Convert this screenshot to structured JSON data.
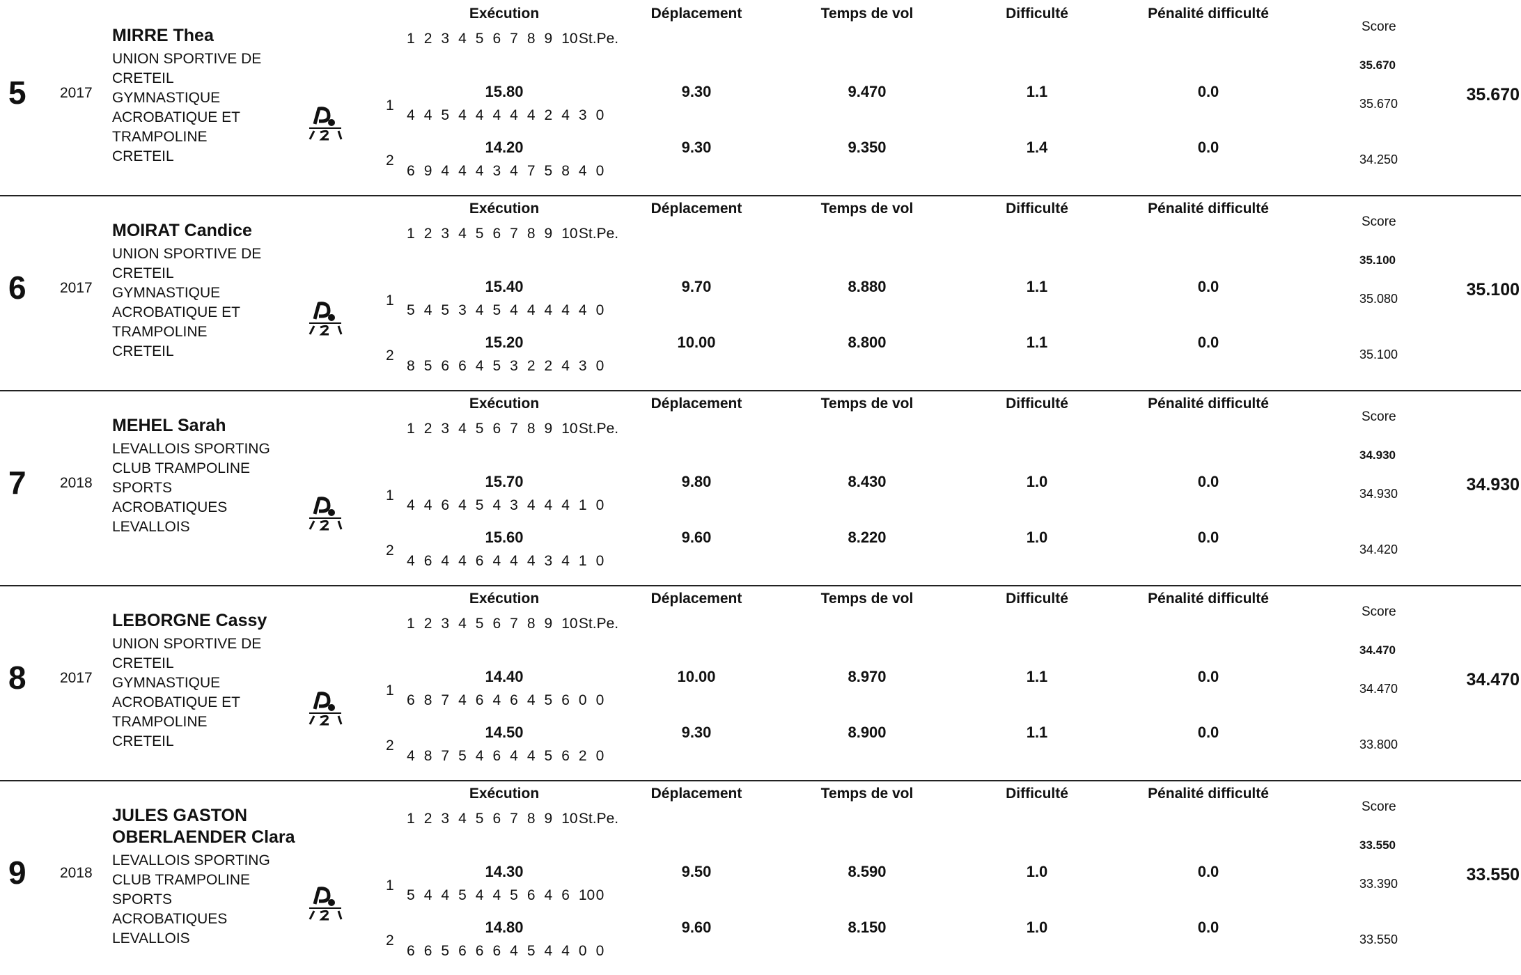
{
  "headers": {
    "execution": "Exécution",
    "displacement": "Déplacement",
    "flight_time": "Temps de vol",
    "difficulty": "Difficulté",
    "difficulty_penalty": "Pénalité difficulté",
    "score": "Score"
  },
  "judge_columns": [
    "1",
    "2",
    "3",
    "4",
    "5",
    "6",
    "7",
    "8",
    "9",
    "10",
    "St.",
    "Pe."
  ],
  "colors": {
    "text": "#111111",
    "rule": "#222222",
    "background": "#ffffff"
  },
  "logo_icon": "trampoline-figure-icon",
  "entries": [
    {
      "rank": "5",
      "year": "2017",
      "names": [
        "MIRRE Thea"
      ],
      "club": [
        "UNION SPORTIVE DE",
        "CRETEIL",
        "GYMNASTIQUE",
        "ACROBATIQUE ET",
        "TRAMPOLINE",
        "CRETEIL"
      ],
      "best_score": "35.670",
      "final_score": "35.670",
      "runs": [
        {
          "number": "1",
          "execution": "15.80",
          "marks": [
            "4",
            "4",
            "5",
            "4",
            "4",
            "4",
            "4",
            "4",
            "2",
            "4",
            "3",
            "0"
          ],
          "displacement": "9.30",
          "flight_time": "9.470",
          "difficulty": "1.1",
          "penalty": "0.0",
          "score": "35.670"
        },
        {
          "number": "2",
          "execution": "14.20",
          "marks": [
            "6",
            "9",
            "4",
            "4",
            "4",
            "3",
            "4",
            "7",
            "5",
            "8",
            "4",
            "0"
          ],
          "displacement": "9.30",
          "flight_time": "9.350",
          "difficulty": "1.4",
          "penalty": "0.0",
          "score": "34.250"
        }
      ]
    },
    {
      "rank": "6",
      "year": "2017",
      "names": [
        "MOIRAT Candice"
      ],
      "club": [
        "UNION SPORTIVE DE",
        "CRETEIL",
        "GYMNASTIQUE",
        "ACROBATIQUE ET",
        "TRAMPOLINE",
        "CRETEIL"
      ],
      "best_score": "35.100",
      "final_score": "35.100",
      "runs": [
        {
          "number": "1",
          "execution": "15.40",
          "marks": [
            "5",
            "4",
            "5",
            "3",
            "4",
            "5",
            "4",
            "4",
            "4",
            "4",
            "4",
            "0"
          ],
          "displacement": "9.70",
          "flight_time": "8.880",
          "difficulty": "1.1",
          "penalty": "0.0",
          "score": "35.080"
        },
        {
          "number": "2",
          "execution": "15.20",
          "marks": [
            "8",
            "5",
            "6",
            "6",
            "4",
            "5",
            "3",
            "2",
            "2",
            "4",
            "3",
            "0"
          ],
          "displacement": "10.00",
          "flight_time": "8.800",
          "difficulty": "1.1",
          "penalty": "0.0",
          "score": "35.100"
        }
      ]
    },
    {
      "rank": "7",
      "year": "2018",
      "names": [
        "MEHEL Sarah"
      ],
      "club": [
        "LEVALLOIS SPORTING",
        "CLUB TRAMPOLINE",
        "SPORTS",
        "ACROBATIQUES",
        "LEVALLOIS"
      ],
      "best_score": "34.930",
      "final_score": "34.930",
      "runs": [
        {
          "number": "1",
          "execution": "15.70",
          "marks": [
            "4",
            "4",
            "6",
            "4",
            "5",
            "4",
            "3",
            "4",
            "4",
            "4",
            "1",
            "0"
          ],
          "displacement": "9.80",
          "flight_time": "8.430",
          "difficulty": "1.0",
          "penalty": "0.0",
          "score": "34.930"
        },
        {
          "number": "2",
          "execution": "15.60",
          "marks": [
            "4",
            "6",
            "4",
            "4",
            "6",
            "4",
            "4",
            "4",
            "3",
            "4",
            "1",
            "0"
          ],
          "displacement": "9.60",
          "flight_time": "8.220",
          "difficulty": "1.0",
          "penalty": "0.0",
          "score": "34.420"
        }
      ]
    },
    {
      "rank": "8",
      "year": "2017",
      "names": [
        "LEBORGNE Cassy"
      ],
      "club": [
        "UNION SPORTIVE DE",
        "CRETEIL",
        "GYMNASTIQUE",
        "ACROBATIQUE ET",
        "TRAMPOLINE",
        "CRETEIL"
      ],
      "best_score": "34.470",
      "final_score": "34.470",
      "runs": [
        {
          "number": "1",
          "execution": "14.40",
          "marks": [
            "6",
            "8",
            "7",
            "4",
            "6",
            "4",
            "6",
            "4",
            "5",
            "6",
            "0",
            "0"
          ],
          "displacement": "10.00",
          "flight_time": "8.970",
          "difficulty": "1.1",
          "penalty": "0.0",
          "score": "34.470"
        },
        {
          "number": "2",
          "execution": "14.50",
          "marks": [
            "4",
            "8",
            "7",
            "5",
            "4",
            "6",
            "4",
            "4",
            "5",
            "6",
            "2",
            "0"
          ],
          "displacement": "9.30",
          "flight_time": "8.900",
          "difficulty": "1.1",
          "penalty": "0.0",
          "score": "33.800"
        }
      ]
    },
    {
      "rank": "9",
      "year": "2018",
      "names": [
        "JULES GASTON",
        "OBERLAENDER Clara"
      ],
      "club": [
        "LEVALLOIS SPORTING",
        "CLUB TRAMPOLINE",
        "SPORTS",
        "ACROBATIQUES",
        "LEVALLOIS"
      ],
      "best_score": "33.550",
      "final_score": "33.550",
      "runs": [
        {
          "number": "1",
          "execution": "14.30",
          "marks": [
            "5",
            "4",
            "4",
            "5",
            "4",
            "4",
            "5",
            "6",
            "4",
            "6",
            "10",
            "0"
          ],
          "displacement": "9.50",
          "flight_time": "8.590",
          "difficulty": "1.0",
          "penalty": "0.0",
          "score": "33.390"
        },
        {
          "number": "2",
          "execution": "14.80",
          "marks": [
            "6",
            "6",
            "5",
            "6",
            "6",
            "6",
            "4",
            "5",
            "4",
            "4",
            "0",
            "0"
          ],
          "displacement": "9.60",
          "flight_time": "8.150",
          "difficulty": "1.0",
          "penalty": "0.0",
          "score": "33.550"
        }
      ]
    }
  ]
}
